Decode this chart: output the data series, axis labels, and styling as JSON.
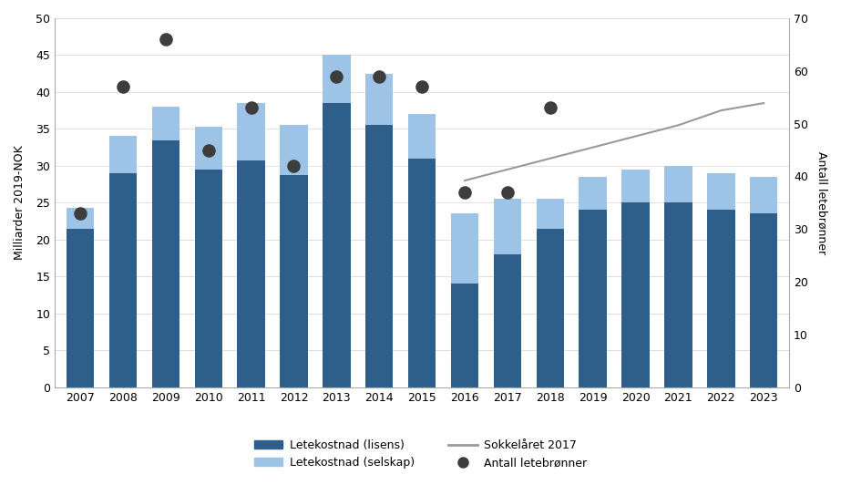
{
  "years": [
    2007,
    2008,
    2009,
    2010,
    2011,
    2012,
    2013,
    2014,
    2015,
    2016,
    2017,
    2018,
    2019,
    2020,
    2021,
    2022,
    2023
  ],
  "lisens": [
    21.5,
    29.0,
    33.5,
    29.5,
    30.7,
    28.8,
    38.5,
    35.5,
    31.0,
    14.0,
    18.0,
    21.5,
    24.0,
    25.0,
    25.0,
    24.0,
    23.5
  ],
  "selskap": [
    2.8,
    5.0,
    4.5,
    5.8,
    7.8,
    6.8,
    6.5,
    7.0,
    6.0,
    9.5,
    7.5,
    4.0,
    4.5,
    4.5,
    5.0,
    5.0,
    5.0
  ],
  "antall_letebrønner": [
    33,
    57,
    66,
    45,
    53,
    42,
    59,
    59,
    57,
    37,
    37,
    53,
    null,
    null,
    null,
    null,
    null
  ],
  "sokkel_years": [
    2016,
    2017,
    2018,
    2019,
    2020,
    2021,
    2022,
    2023
  ],
  "sokkel_values": [
    28.0,
    29.5,
    31.0,
    32.5,
    34.0,
    35.5,
    37.5,
    38.5
  ],
  "bar_color_lisens": "#2e5f8a",
  "bar_color_selskap": "#9dc3e6",
  "line_color": "#999999",
  "dot_color": "#3d3d3d",
  "ylabel_left": "Milliarder 2019-NOK",
  "ylabel_right": "Antall letebrønner",
  "ylim_left": [
    0,
    50
  ],
  "ylim_right": [
    0,
    70
  ],
  "yticks_left": [
    0,
    5,
    10,
    15,
    20,
    25,
    30,
    35,
    40,
    45,
    50
  ],
  "yticks_right": [
    0,
    10,
    20,
    30,
    40,
    50,
    60,
    70
  ],
  "legend_labels": [
    "Letekostnad (lisens)",
    "Letekostnad (selskap)",
    "Sokkelåret 2017",
    "Antall letebrønner"
  ],
  "bg_color": "#ffffff"
}
